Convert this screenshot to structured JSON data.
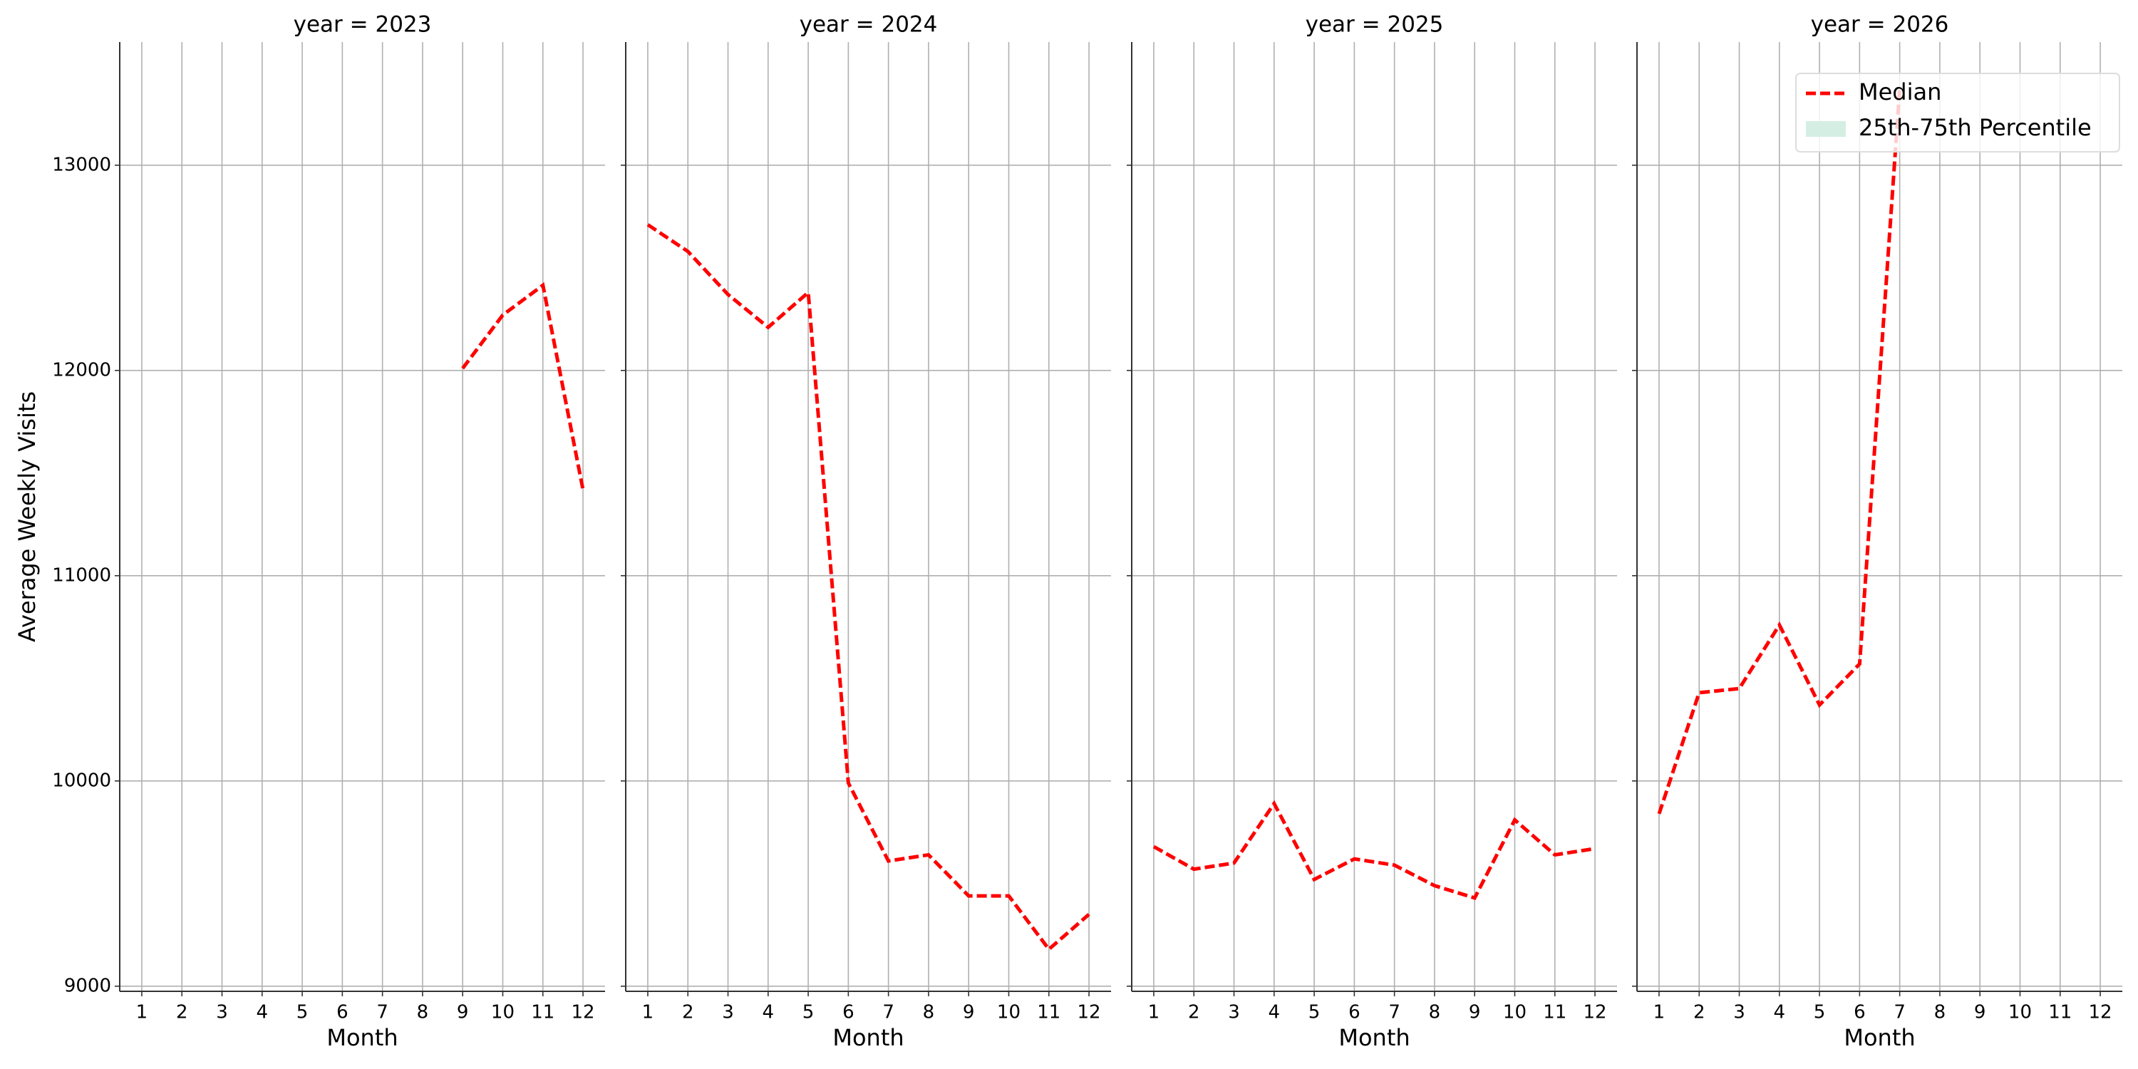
{
  "chart_data": [
    {
      "type": "line",
      "title": "year = 2023",
      "xlabel": "Month",
      "ylabel": "Average Weekly Visits",
      "x": [
        1,
        2,
        3,
        4,
        5,
        6,
        7,
        8,
        9,
        10,
        11,
        12
      ],
      "series": [
        {
          "values": [
            null,
            null,
            null,
            null,
            null,
            null,
            null,
            null,
            12010,
            12270,
            12415,
            11420
          ]
        }
      ],
      "xlim": [
        0.45,
        12.55
      ],
      "ylim": [
        8975,
        13600
      ],
      "xticks": [
        1,
        2,
        3,
        4,
        5,
        6,
        7,
        8,
        9,
        10,
        11,
        12
      ],
      "yticks": [
        9000,
        10000,
        11000,
        12000,
        13000
      ],
      "grid": true
    },
    {
      "type": "line",
      "title": "year = 2024",
      "xlabel": "Month",
      "x": [
        1,
        2,
        3,
        4,
        5,
        6,
        7,
        8,
        9,
        10,
        11,
        12
      ],
      "series": [
        {
          "values": [
            12710,
            12580,
            12370,
            12210,
            12380,
            9990,
            9610,
            9640,
            9440,
            9440,
            9180,
            9350
          ]
        }
      ],
      "xlim": [
        0.45,
        12.55
      ],
      "ylim": [
        8975,
        13600
      ],
      "xticks": [
        1,
        2,
        3,
        4,
        5,
        6,
        7,
        8,
        9,
        10,
        11,
        12
      ],
      "yticks": [
        9000,
        10000,
        11000,
        12000,
        13000
      ],
      "grid": true
    },
    {
      "type": "line",
      "title": "year = 2025",
      "xlabel": "Month",
      "x": [
        1,
        2,
        3,
        4,
        5,
        6,
        7,
        8,
        9,
        10,
        11,
        12
      ],
      "series": [
        {
          "values": [
            9680,
            9570,
            9600,
            9890,
            9520,
            9620,
            9590,
            9490,
            9430,
            9810,
            9640,
            9670
          ]
        }
      ],
      "xlim": [
        0.45,
        12.55
      ],
      "ylim": [
        8975,
        13600
      ],
      "xticks": [
        1,
        2,
        3,
        4,
        5,
        6,
        7,
        8,
        9,
        10,
        11,
        12
      ],
      "yticks": [
        9000,
        10000,
        11000,
        12000,
        13000
      ],
      "grid": true
    },
    {
      "type": "line",
      "title": "year = 2026",
      "xlabel": "Month",
      "x": [
        1,
        2,
        3,
        4,
        5,
        6,
        7,
        8,
        9,
        10,
        11,
        12
      ],
      "series": [
        {
          "values": [
            9840,
            10430,
            10450,
            10760,
            10370,
            10570,
            13370,
            null,
            null,
            null,
            null,
            null
          ]
        }
      ],
      "xlim": [
        0.45,
        12.55
      ],
      "ylim": [
        8975,
        13600
      ],
      "xticks": [
        1,
        2,
        3,
        4,
        5,
        6,
        7,
        8,
        9,
        10,
        11,
        12
      ],
      "yticks": [
        9000,
        10000,
        11000,
        12000,
        13000
      ],
      "grid": true
    }
  ],
  "legend": {
    "position": "upper right",
    "entries": [
      {
        "name": "Median",
        "color": "#ff0000",
        "style": "dashed"
      },
      {
        "name": "25th-75th Percentile",
        "color": "#d5eee4",
        "style": "patch"
      }
    ]
  }
}
